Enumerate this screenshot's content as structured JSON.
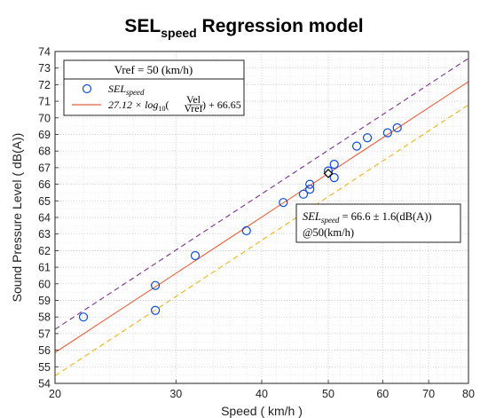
{
  "chart_data": {
    "type": "scatter",
    "title": "SEL",
    "title_sub": "speed",
    "title_rest": " Regression model",
    "xlabel": "Speed ( km/h )",
    "ylabel": "Sound Pressure Level ( dB(A))",
    "xscale": "log",
    "xlim": [
      20,
      80
    ],
    "ylim": [
      54,
      74
    ],
    "xticks": [
      20,
      30,
      40,
      50,
      60,
      70,
      80
    ],
    "xtick_labels": [
      "20",
      "30",
      "40",
      "50",
      "60",
      "70",
      "80"
    ],
    "yticks": [
      54,
      55,
      56,
      57,
      58,
      59,
      60,
      61,
      62,
      63,
      64,
      65,
      66,
      67,
      68,
      69,
      70,
      71,
      72,
      73,
      74
    ],
    "ytick_labels": [
      "54",
      "55",
      "56",
      "57",
      "58",
      "59",
      "60",
      "61",
      "62",
      "63",
      "64",
      "65",
      "66",
      "67",
      "68",
      "69",
      "70",
      "71",
      "72",
      "73",
      "74"
    ],
    "grid": "on, major and minor dotted",
    "legend_location": "top-left",
    "legend_title": "Vref = 50 (km/h)",
    "series": [
      {
        "name": "SEL_speed",
        "kind": "markers",
        "color": "#0c4bd4",
        "x": [
          22,
          28,
          28,
          32,
          38,
          43,
          46,
          47,
          47,
          50,
          51,
          51,
          55,
          57,
          61,
          63
        ],
        "y": [
          58.0,
          59.9,
          58.4,
          61.7,
          63.2,
          64.9,
          65.4,
          65.7,
          66.0,
          66.8,
          67.2,
          66.4,
          68.3,
          68.8,
          69.1,
          69.4
        ]
      },
      {
        "name": "27.12 × log10(Vel/Vref) + 66.65",
        "kind": "line",
        "color": "#e8603c",
        "slope": 27.12,
        "vref": 50,
        "intercept": 66.65
      },
      {
        "kind": "line-dashed",
        "color": "#7e2f8e",
        "slope": 27.12,
        "vref": 50,
        "intercept": 68.05
      },
      {
        "kind": "line-dashed",
        "color": "#edb120",
        "slope": 27.12,
        "vref": 50,
        "intercept": 65.25
      }
    ],
    "reference_point": {
      "x": 50,
      "y": 66.65,
      "marker": "diamond"
    },
    "annotation": {
      "line1": "SEL_speed = 66.6 ± 1.6(dB(A))",
      "line2": "@50(km/h)"
    }
  },
  "labels": {
    "legend_marker_label": "SEL",
    "legend_marker_sub": "speed",
    "legend_line_label": "27.12 × log",
    "legend_line_sub": "10",
    "legend_line_frac_num": "Vel",
    "legend_line_frac_den": "Vref",
    "legend_line_tail": ") + 66.65",
    "ann_lhs": "SEL",
    "ann_sub": "speed",
    "ann_rhs": " = 66.6 ± 1.6(dB(A))",
    "ann_line2": "@50(km/h)"
  }
}
